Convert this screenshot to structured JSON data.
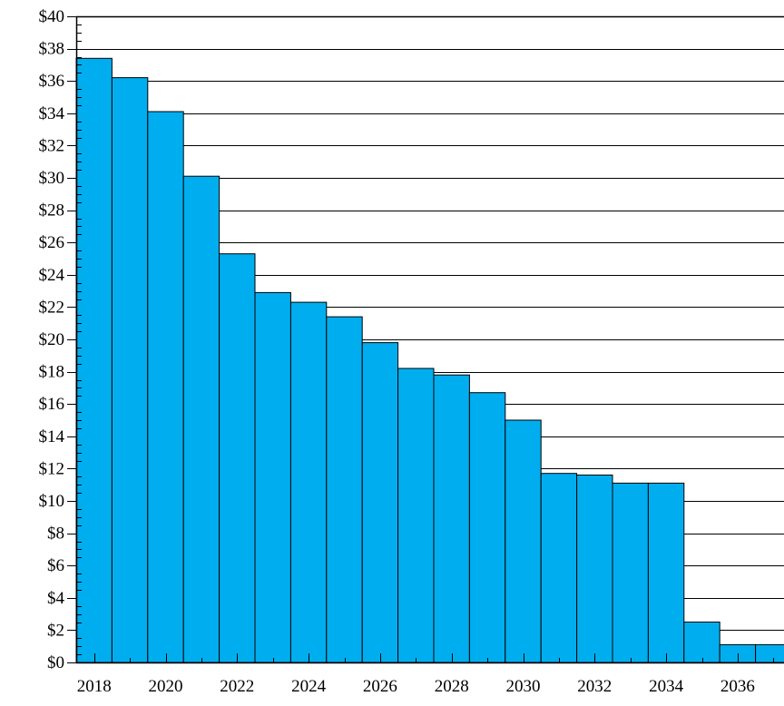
{
  "chart_data": {
    "type": "bar",
    "title": "",
    "xlabel": "",
    "ylabel": "",
    "categories": [
      "2018",
      "2019",
      "2020",
      "2021",
      "2022",
      "2023",
      "2024",
      "2025",
      "2026",
      "2027",
      "2028",
      "2029",
      "2030",
      "2031",
      "2032",
      "2033",
      "2034",
      "2035",
      "2036",
      "2037"
    ],
    "values": [
      37.4,
      36.2,
      34.1,
      30.1,
      25.3,
      22.9,
      22.3,
      21.4,
      19.8,
      18.2,
      17.8,
      16.7,
      15.0,
      11.7,
      11.6,
      11.1,
      11.1,
      2.5,
      1.1,
      1.1
    ],
    "x_tick_labels": [
      "2018",
      "2020",
      "2022",
      "2024",
      "2026",
      "2028",
      "2030",
      "2032",
      "2034",
      "2036"
    ],
    "y_tick_labels": [
      "$0",
      "$2",
      "$4",
      "$6",
      "$8",
      "$10",
      "$12",
      "$14",
      "$16",
      "$18",
      "$20",
      "$22",
      "$24",
      "$26",
      "$28",
      "$30",
      "$32",
      "$34",
      "$36",
      "$38",
      "$40"
    ],
    "ylim": [
      0,
      40
    ],
    "y_major_step": 2,
    "grid": "horizontal",
    "bar_color": "#00AEEF",
    "edge_color": "#000000"
  }
}
